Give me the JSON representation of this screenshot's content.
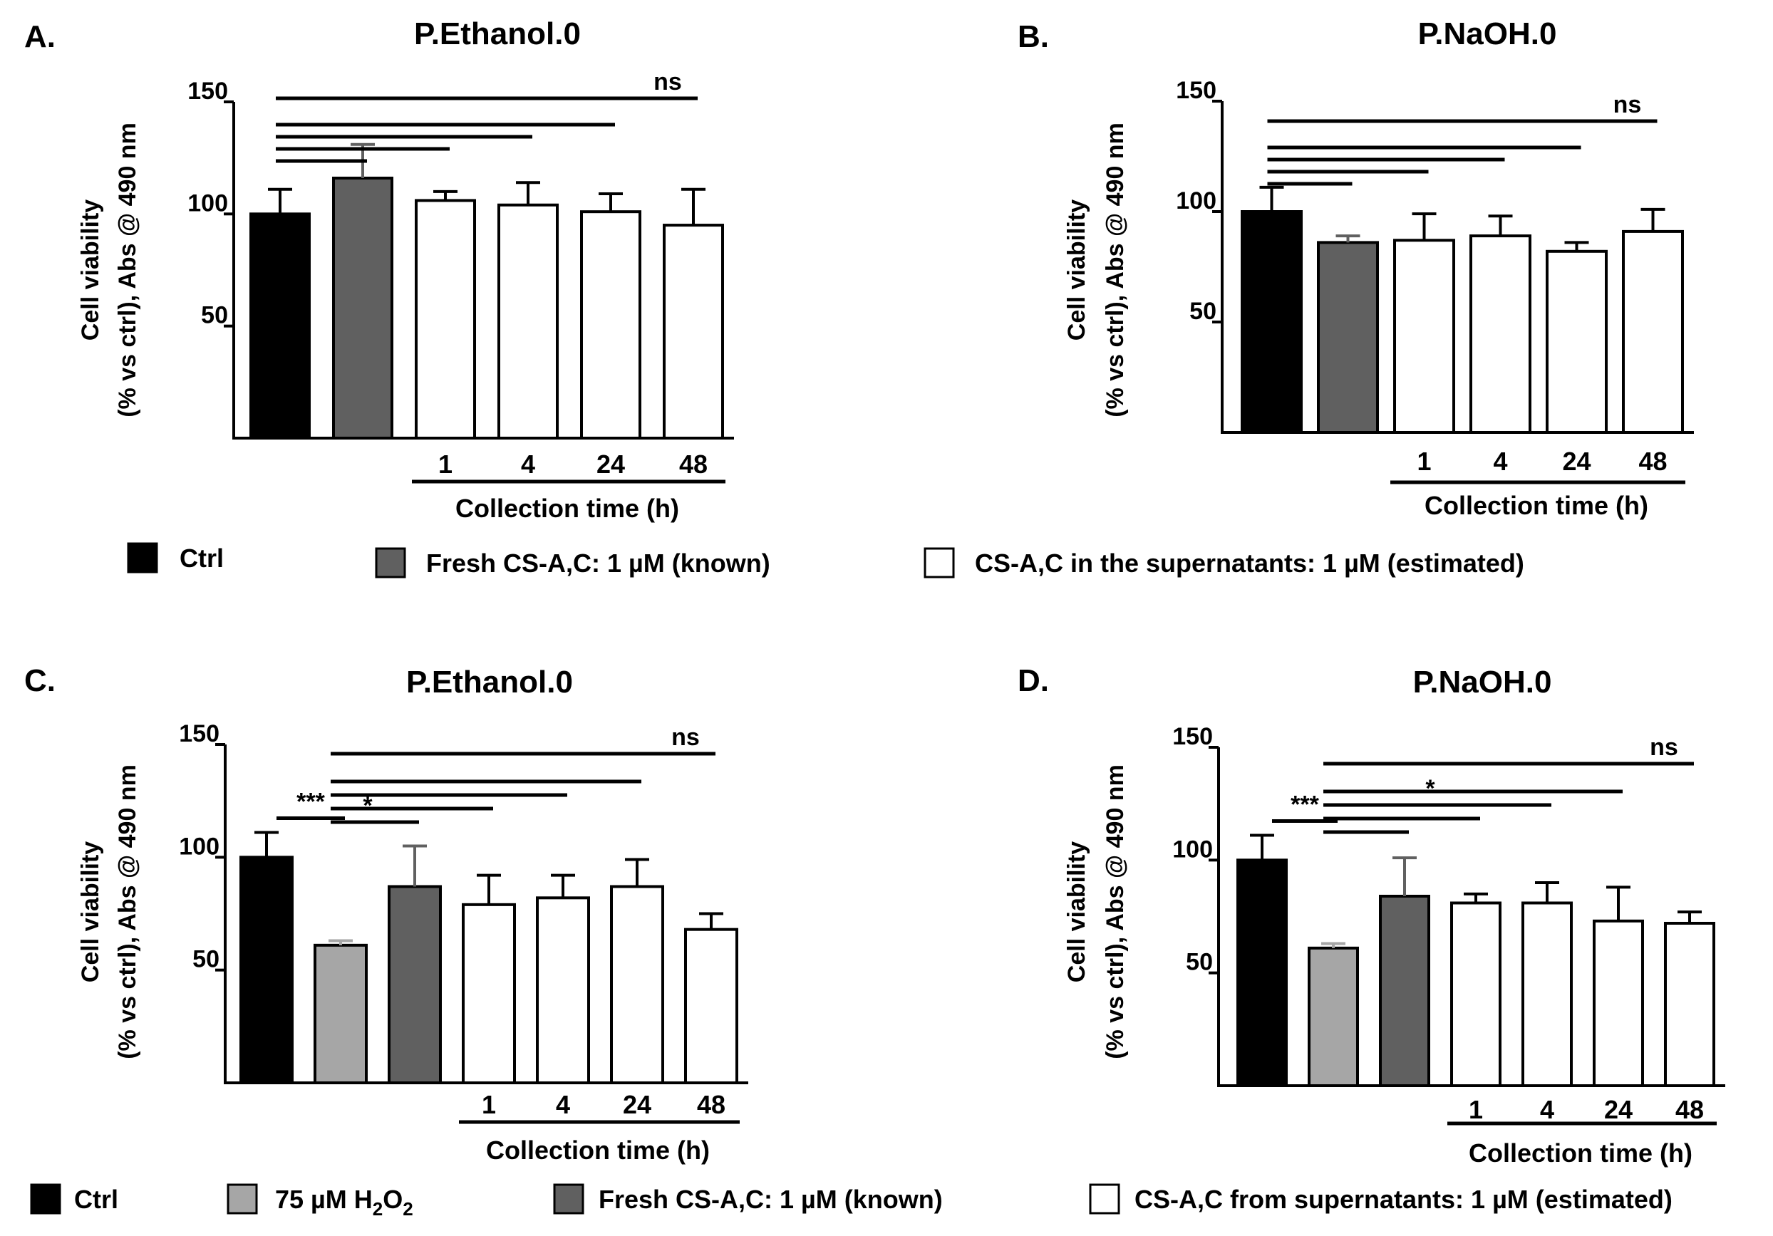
{
  "chart_data": [
    {
      "type": "bar",
      "panel": "A.",
      "title": "P.Ethanol.0",
      "ylabel_line1": "Cell viability",
      "ylabel_line2": "(% vs ctrl), Abs @ 490 nm",
      "xlabel": "Collection time (h)",
      "ylim": [
        0,
        150
      ],
      "yticks": [
        50,
        100,
        150
      ],
      "categories": [
        "",
        "",
        "1",
        "4",
        "24",
        "48"
      ],
      "groups": [
        "ctrl",
        "fresh",
        "super",
        "super",
        "super",
        "super"
      ],
      "values": [
        100,
        116,
        106,
        104,
        101,
        95
      ],
      "errors": [
        11,
        15,
        4,
        10,
        8,
        16
      ],
      "significance": [
        {
          "from": 0,
          "to": 1,
          "label": ""
        },
        {
          "from": 0,
          "to": 2,
          "label": ""
        },
        {
          "from": 0,
          "to": 3,
          "label": ""
        },
        {
          "from": 0,
          "to": 4,
          "label": ""
        },
        {
          "from": 0,
          "to": 5,
          "label": "ns"
        }
      ]
    },
    {
      "type": "bar",
      "panel": "B.",
      "title": "P.NaOH.0",
      "ylabel_line1": "Cell viability",
      "ylabel_line2": "(% vs ctrl), Abs @ 490 nm",
      "xlabel": "Collection time (h)",
      "ylim": [
        0,
        150
      ],
      "yticks": [
        50,
        100,
        150
      ],
      "categories": [
        "",
        "",
        "1",
        "4",
        "24",
        "48"
      ],
      "groups": [
        "ctrl",
        "fresh",
        "super",
        "super",
        "super",
        "super"
      ],
      "values": [
        100,
        86,
        87,
        89,
        82,
        91
      ],
      "errors": [
        11,
        3,
        12,
        9,
        4,
        10
      ],
      "significance": [
        {
          "from": 0,
          "to": 1,
          "label": ""
        },
        {
          "from": 0,
          "to": 2,
          "label": ""
        },
        {
          "from": 0,
          "to": 3,
          "label": ""
        },
        {
          "from": 0,
          "to": 4,
          "label": ""
        },
        {
          "from": 0,
          "to": 5,
          "label": "ns"
        }
      ]
    },
    {
      "type": "bar",
      "panel": "C.",
      "title": "P.Ethanol.0",
      "ylabel_line1": "Cell viability",
      "ylabel_line2": "(% vs ctrl), Abs @ 490 nm",
      "xlabel": "Collection time (h)",
      "ylim": [
        0,
        150
      ],
      "yticks": [
        50,
        100,
        150
      ],
      "categories": [
        "",
        "",
        "",
        "1",
        "4",
        "24",
        "48"
      ],
      "groups": [
        "ctrl",
        "h2o2",
        "fresh",
        "super",
        "super",
        "super",
        "super"
      ],
      "values": [
        100,
        61,
        87,
        79,
        82,
        87,
        68
      ],
      "errors": [
        11,
        2,
        18,
        13,
        10,
        12,
        7
      ],
      "significance": [
        {
          "from": 0,
          "to": 1,
          "label": "***"
        },
        {
          "from": 1,
          "to": 2,
          "label": "*"
        },
        {
          "from": 1,
          "to": 3,
          "label": ""
        },
        {
          "from": 1,
          "to": 4,
          "label": ""
        },
        {
          "from": 1,
          "to": 5,
          "label": ""
        },
        {
          "from": 1,
          "to": 6,
          "label": "ns"
        }
      ]
    },
    {
      "type": "bar",
      "panel": "D.",
      "title": "P.NaOH.0",
      "ylabel_line1": "Cell viability",
      "ylabel_line2": "(% vs ctrl), Abs @ 490 nm",
      "xlabel": "Collection time (h)",
      "ylim": [
        0,
        150
      ],
      "yticks": [
        50,
        100,
        150
      ],
      "categories": [
        "",
        "",
        "",
        "1",
        "4",
        "24",
        "48"
      ],
      "groups": [
        "ctrl",
        "h2o2",
        "fresh",
        "super",
        "super",
        "super",
        "super"
      ],
      "values": [
        100,
        61,
        84,
        81,
        81,
        73,
        72
      ],
      "errors": [
        11,
        2,
        17,
        4,
        9,
        15,
        5
      ],
      "significance": [
        {
          "from": 0,
          "to": 1,
          "label": "***"
        },
        {
          "from": 1,
          "to": 2,
          "label": ""
        },
        {
          "from": 1,
          "to": 3,
          "label": ""
        },
        {
          "from": 1,
          "to": 4,
          "label": "*"
        },
        {
          "from": 1,
          "to": 5,
          "label": ""
        },
        {
          "from": 1,
          "to": 6,
          "label": "ns"
        }
      ]
    }
  ],
  "legend_top": [
    {
      "group": "ctrl",
      "label": "Ctrl"
    },
    {
      "group": "fresh",
      "label": "Fresh CS-A,C: 1 µM (known)"
    },
    {
      "group": "super",
      "label": "CS-A,C in the supernatants: 1 µM (estimated)"
    }
  ],
  "legend_bottom": [
    {
      "group": "ctrl",
      "label": "Ctrl"
    },
    {
      "group": "h2o2",
      "label": "75 µM H",
      "sub": "2",
      "tail": "O",
      "sub2": "2"
    },
    {
      "group": "fresh",
      "label": "Fresh CS-A,C: 1 µM (known)"
    },
    {
      "group": "super",
      "label": "CS-A,C from supernatants: 1 µM (estimated)"
    }
  ],
  "colors": {
    "ctrl": "#000000",
    "h2o2": "#a6a6a6",
    "fresh": "#606060",
    "super": "#ffffff"
  }
}
